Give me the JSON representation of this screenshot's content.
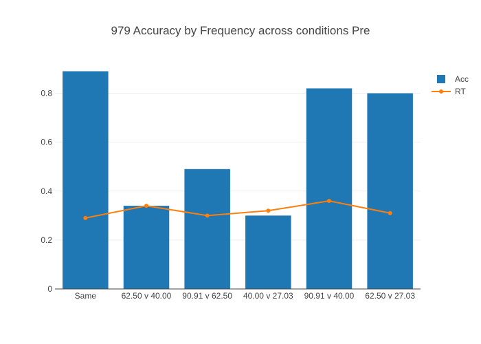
{
  "chart_data": {
    "type": "bar",
    "title": "979 Accuracy by Frequency across conditions Pre",
    "xlabel": "",
    "ylabel": "",
    "categories": [
      "Same",
      "62.50 v 40.00",
      "90.91 v 62.50",
      "40.00 v 27.03",
      "90.91 v 40.00",
      "62.50 v 27.03"
    ],
    "ylim": [
      0,
      0.9
    ],
    "yticks": [
      0,
      0.2,
      0.4,
      0.6,
      0.8
    ],
    "ytick_labels": [
      "0",
      "0.2",
      "0.4",
      "0.6",
      "0.8"
    ],
    "grid": true,
    "legend_position": "top-right",
    "series": [
      {
        "name": "Acc",
        "type": "bar",
        "color": "#1f77b4",
        "values": [
          0.89,
          0.34,
          0.49,
          0.3,
          0.82,
          0.8
        ]
      },
      {
        "name": "RT",
        "type": "line",
        "color": "#ff7f0e",
        "values": [
          0.29,
          0.34,
          0.3,
          0.32,
          0.36,
          0.31
        ]
      }
    ]
  }
}
